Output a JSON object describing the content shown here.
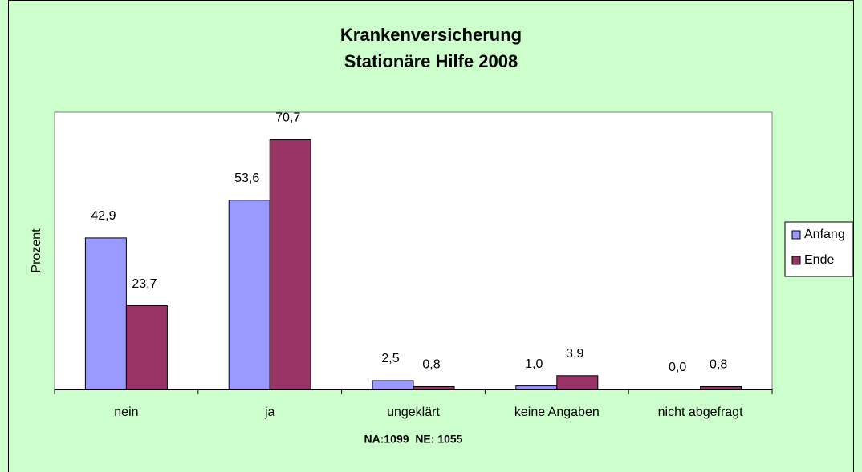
{
  "chart_data": {
    "type": "bar",
    "title": [
      "Krankenversicherung",
      "Stationäre Hilfe 2008"
    ],
    "y_label": "Prozent",
    "annotation": "NA:1099  NE: 1055",
    "categories": [
      "nein",
      "ja",
      "ungeklärt",
      "keine Angaben",
      "nicht abgefragt"
    ],
    "series": [
      {
        "name": "Anfang",
        "color": "#9999ff",
        "values": [
          42.9,
          53.6,
          2.5,
          1.0,
          0.0
        ],
        "value_labels": [
          "42,9",
          "53,6",
          "2,5",
          "1,0",
          "0,0"
        ]
      },
      {
        "name": "Ende",
        "color": "#993366",
        "values": [
          23.7,
          70.7,
          0.8,
          3.9,
          0.8
        ],
        "value_labels": [
          "23,7",
          "70,7",
          "0,8",
          "3,9",
          "0,8"
        ]
      }
    ],
    "ylim": [
      0,
      78.5
    ],
    "legend": "right"
  }
}
